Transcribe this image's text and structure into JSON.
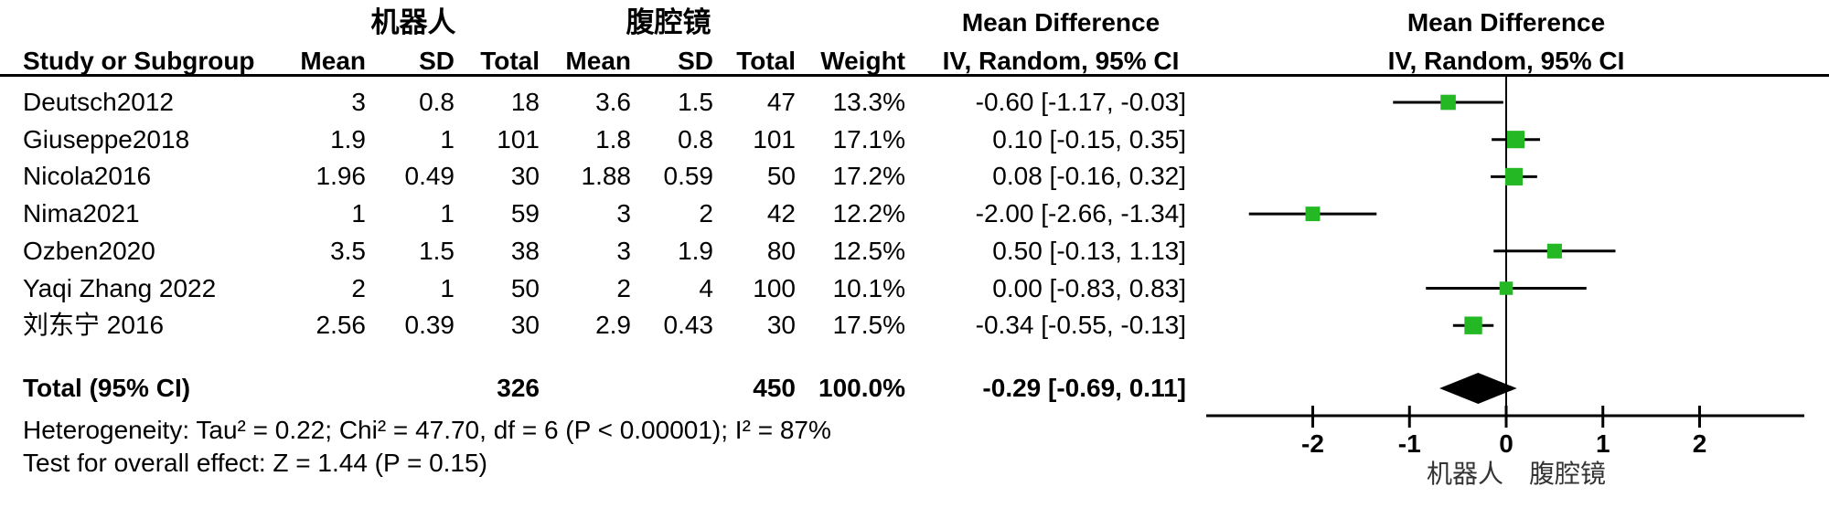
{
  "figure": {
    "type_label": "forest-plot",
    "background": "#ffffff",
    "text_color": "#000000",
    "marker_color": "#24b824",
    "line_color": "#000000"
  },
  "table": {
    "group1_label": "机器人",
    "group2_label": "腹腔镜",
    "headers": {
      "study": "Study or Subgroup",
      "mean": "Mean",
      "sd": "SD",
      "total": "Total",
      "mean2": "Mean",
      "sd2": "SD",
      "total2": "Total",
      "weight": "Weight",
      "md_title": "Mean Difference",
      "md_method": "IV, Random, 95% CI",
      "plot_title": "Mean Difference",
      "plot_method": "IV, Random, 95% CI"
    },
    "rows": [
      {
        "study": "Deutsch2012",
        "mean1": "3",
        "sd1": "0.8",
        "total1": "18",
        "mean2": "3.6",
        "sd2": "1.5",
        "total2": "47",
        "weight": "13.3%",
        "ci_text": "-0.60 [-1.17, -0.03]"
      },
      {
        "study": "Giuseppe2018",
        "mean1": "1.9",
        "sd1": "1",
        "total1": "101",
        "mean2": "1.8",
        "sd2": "0.8",
        "total2": "101",
        "weight": "17.1%",
        "ci_text": "0.10 [-0.15, 0.35]"
      },
      {
        "study": "Nicola2016",
        "mean1": "1.96",
        "sd1": "0.49",
        "total1": "30",
        "mean2": "1.88",
        "sd2": "0.59",
        "total2": "50",
        "weight": "17.2%",
        "ci_text": "0.08 [-0.16, 0.32]"
      },
      {
        "study": "Nima2021",
        "mean1": "1",
        "sd1": "1",
        "total1": "59",
        "mean2": "3",
        "sd2": "2",
        "total2": "42",
        "weight": "12.2%",
        "ci_text": "-2.00 [-2.66, -1.34]"
      },
      {
        "study": "Ozben2020",
        "mean1": "3.5",
        "sd1": "1.5",
        "total1": "38",
        "mean2": "3",
        "sd2": "1.9",
        "total2": "80",
        "weight": "12.5%",
        "ci_text": "0.50 [-0.13, 1.13]"
      },
      {
        "study": "Yaqi Zhang 2022",
        "mean1": "2",
        "sd1": "1",
        "total1": "50",
        "mean2": "2",
        "sd2": "4",
        "total2": "100",
        "weight": "10.1%",
        "ci_text": "0.00 [-0.83, 0.83]"
      },
      {
        "study": "刘东宁 2016",
        "mean1": "2.56",
        "sd1": "0.39",
        "total1": "30",
        "mean2": "2.9",
        "sd2": "0.43",
        "total2": "30",
        "weight": "17.5%",
        "ci_text": "-0.34 [-0.55, -0.13]"
      }
    ],
    "total_row": {
      "label": "Total (95% CI)",
      "total1": "326",
      "total2": "450",
      "weight": "100.0%",
      "ci_text": "-0.29 [-0.69, 0.11]"
    },
    "heterogeneity": "Heterogeneity: Tau² = 0.22; Chi² = 47.70, df = 6 (P < 0.00001); I² = 87%",
    "overall_effect": "Test for overall effect: Z = 1.44 (P = 0.15)"
  },
  "chart_data": {
    "type": "forest",
    "effect_measure": "Mean Difference",
    "model": "IV, Random, 95% CI",
    "xlim": [
      -3.1,
      3.1
    ],
    "axis_ticks": [
      -2,
      -1,
      0,
      1,
      2
    ],
    "favours_left_label": "机器人",
    "favours_right_label": "腹腔镜",
    "studies": [
      {
        "name": "Deutsch2012",
        "md": -0.6,
        "lo": -1.17,
        "hi": -0.03,
        "weight": 13.3
      },
      {
        "name": "Giuseppe2018",
        "md": 0.1,
        "lo": -0.15,
        "hi": 0.35,
        "weight": 17.1
      },
      {
        "name": "Nicola2016",
        "md": 0.08,
        "lo": -0.16,
        "hi": 0.32,
        "weight": 17.2
      },
      {
        "name": "Nima2021",
        "md": -2.0,
        "lo": -2.66,
        "hi": -1.34,
        "weight": 12.2
      },
      {
        "name": "Ozben2020",
        "md": 0.5,
        "lo": -0.13,
        "hi": 1.13,
        "weight": 12.5
      },
      {
        "name": "Yaqi Zhang 2022",
        "md": 0.0,
        "lo": -0.83,
        "hi": 0.83,
        "weight": 10.1
      },
      {
        "name": "刘东宁 2016",
        "md": -0.34,
        "lo": -0.55,
        "hi": -0.13,
        "weight": 17.5
      }
    ],
    "total": {
      "name": "Total (95% CI)",
      "md": -0.29,
      "lo": -0.69,
      "hi": 0.11
    }
  }
}
